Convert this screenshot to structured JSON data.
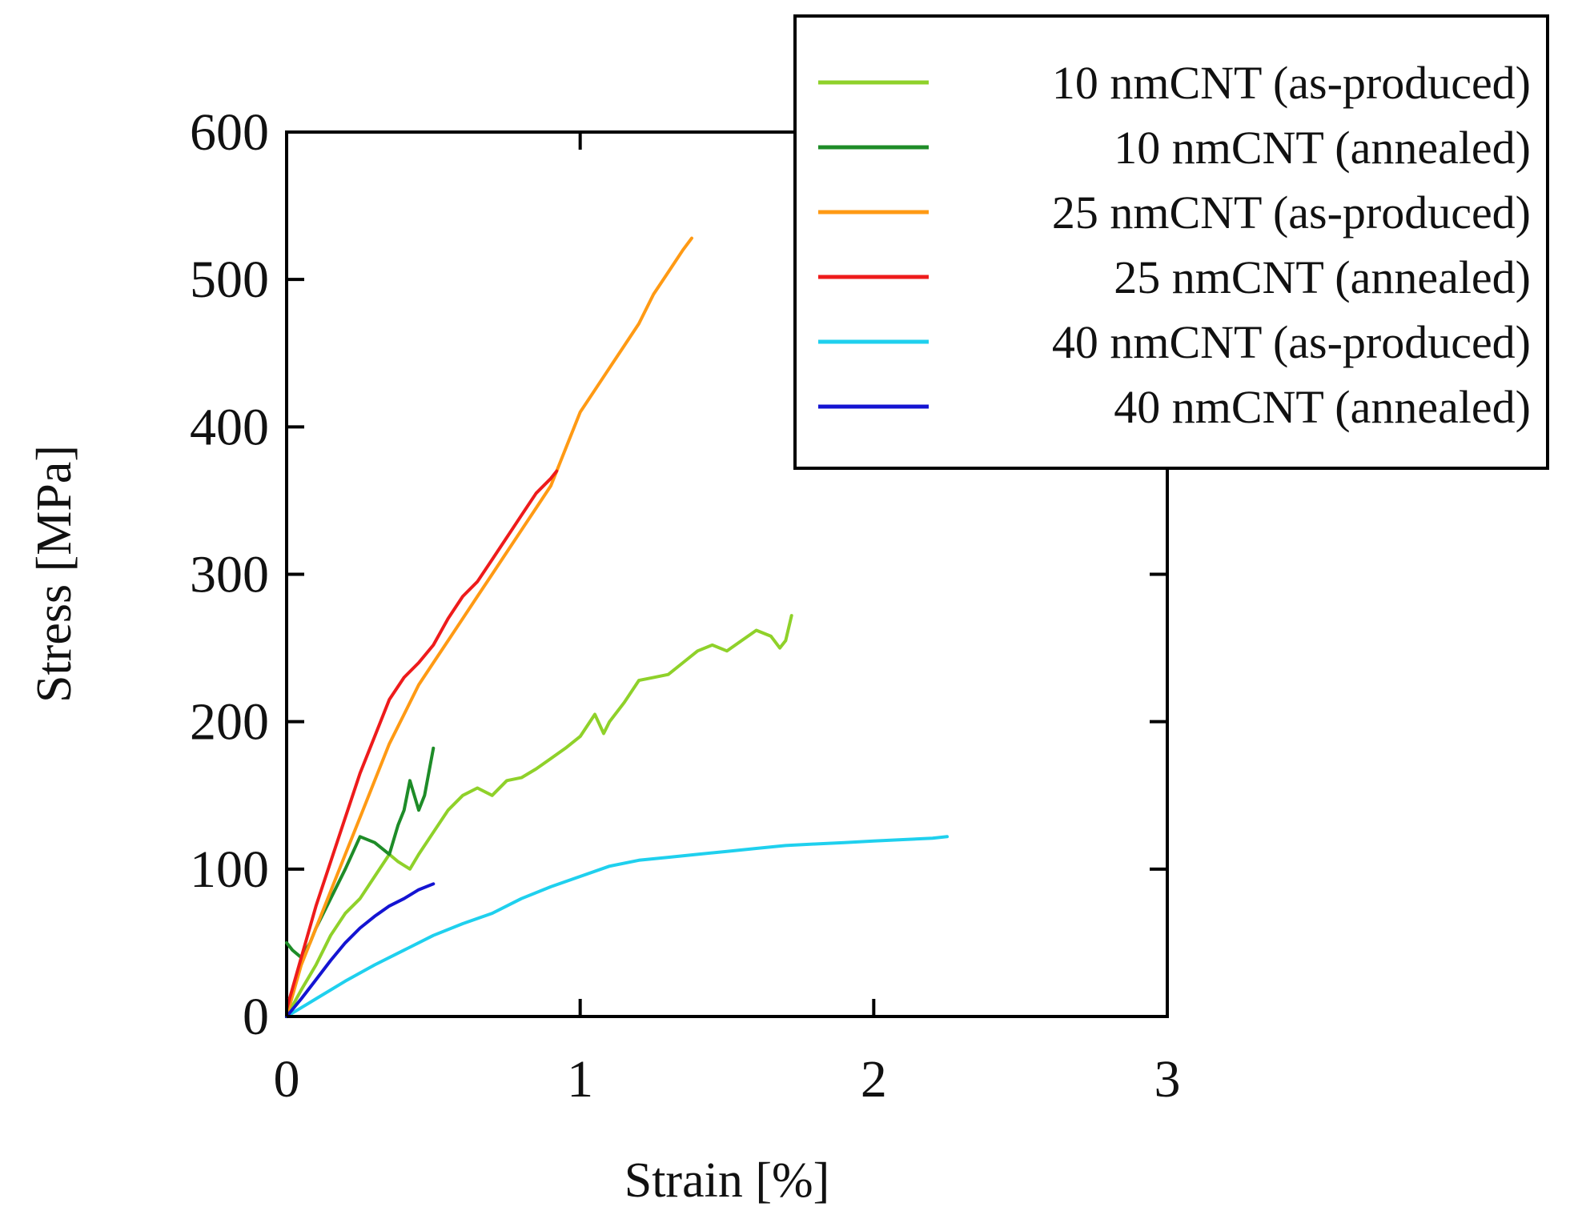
{
  "chart_data": {
    "type": "line",
    "title": "",
    "xlabel": "Strain [%]",
    "ylabel": "Stress [MPa]",
    "xlim": [
      0,
      3
    ],
    "ylim": [
      0,
      600
    ],
    "xticks": [
      0,
      1,
      2,
      3
    ],
    "yticks": [
      0,
      100,
      200,
      300,
      400,
      500,
      600
    ],
    "grid": false,
    "legend_position": "top-right",
    "series": [
      {
        "name": "10 nmCNT (as-produced)",
        "color": "#8fd12a",
        "x": [
          0,
          0.05,
          0.1,
          0.15,
          0.2,
          0.25,
          0.3,
          0.35,
          0.38,
          0.42,
          0.45,
          0.5,
          0.55,
          0.6,
          0.65,
          0.7,
          0.75,
          0.8,
          0.85,
          0.9,
          0.95,
          1.0,
          1.05,
          1.08,
          1.1,
          1.15,
          1.2,
          1.25,
          1.3,
          1.35,
          1.4,
          1.45,
          1.5,
          1.55,
          1.6,
          1.65,
          1.68,
          1.7,
          1.72
        ],
        "y": [
          0,
          18,
          35,
          55,
          70,
          80,
          95,
          110,
          105,
          100,
          110,
          125,
          140,
          150,
          155,
          150,
          160,
          162,
          168,
          175,
          182,
          190,
          205,
          192,
          200,
          213,
          228,
          230,
          232,
          240,
          248,
          252,
          248,
          255,
          262,
          258,
          250,
          255,
          272
        ]
      },
      {
        "name": "10 nmCNT (annealed)",
        "color": "#1e8c28",
        "x": [
          0,
          0.02,
          0.05,
          0.08,
          0.1,
          0.15,
          0.2,
          0.25,
          0.3,
          0.35,
          0.38,
          0.4,
          0.42,
          0.45,
          0.47,
          0.5
        ],
        "y": [
          50,
          45,
          40,
          50,
          60,
          80,
          100,
          122,
          118,
          110,
          130,
          140,
          160,
          140,
          150,
          182
        ]
      },
      {
        "name": "25 nmCNT (as-produced)",
        "color": "#ff9a14",
        "x": [
          0,
          0.05,
          0.1,
          0.15,
          0.2,
          0.25,
          0.3,
          0.35,
          0.4,
          0.45,
          0.5,
          0.55,
          0.6,
          0.65,
          0.7,
          0.75,
          0.8,
          0.85,
          0.9,
          0.95,
          1.0,
          1.05,
          1.1,
          1.15,
          1.2,
          1.25,
          1.3,
          1.35,
          1.38
        ],
        "y": [
          0,
          35,
          60,
          85,
          110,
          135,
          160,
          185,
          205,
          225,
          240,
          255,
          270,
          285,
          300,
          315,
          330,
          345,
          360,
          385,
          410,
          425,
          440,
          455,
          470,
          490,
          505,
          520,
          528
        ]
      },
      {
        "name": "25 nmCNT (annealed)",
        "color": "#ee1b1b",
        "x": [
          0,
          0.05,
          0.1,
          0.15,
          0.2,
          0.25,
          0.3,
          0.35,
          0.4,
          0.45,
          0.5,
          0.55,
          0.6,
          0.65,
          0.7,
          0.75,
          0.8,
          0.85,
          0.9,
          0.92
        ],
        "y": [
          5,
          40,
          75,
          105,
          135,
          165,
          190,
          215,
          230,
          240,
          252,
          270,
          285,
          295,
          310,
          325,
          340,
          355,
          365,
          370
        ]
      },
      {
        "name": "40 nmCNT (as-produced)",
        "color": "#1fd0ee",
        "x": [
          0,
          0.1,
          0.2,
          0.3,
          0.4,
          0.5,
          0.6,
          0.7,
          0.8,
          0.9,
          1.0,
          1.1,
          1.2,
          1.3,
          1.4,
          1.5,
          1.6,
          1.7,
          1.8,
          1.9,
          2.0,
          2.1,
          2.2,
          2.25
        ],
        "y": [
          0,
          12,
          24,
          35,
          45,
          55,
          63,
          70,
          80,
          88,
          95,
          102,
          106,
          108,
          110,
          112,
          114,
          116,
          117,
          118,
          119,
          120,
          121,
          122
        ]
      },
      {
        "name": "40 nmCNT (annealed)",
        "color": "#1414d2",
        "x": [
          0,
          0.05,
          0.1,
          0.15,
          0.2,
          0.25,
          0.3,
          0.35,
          0.4,
          0.45,
          0.5
        ],
        "y": [
          0,
          12,
          25,
          38,
          50,
          60,
          68,
          75,
          80,
          86,
          90
        ]
      }
    ]
  }
}
